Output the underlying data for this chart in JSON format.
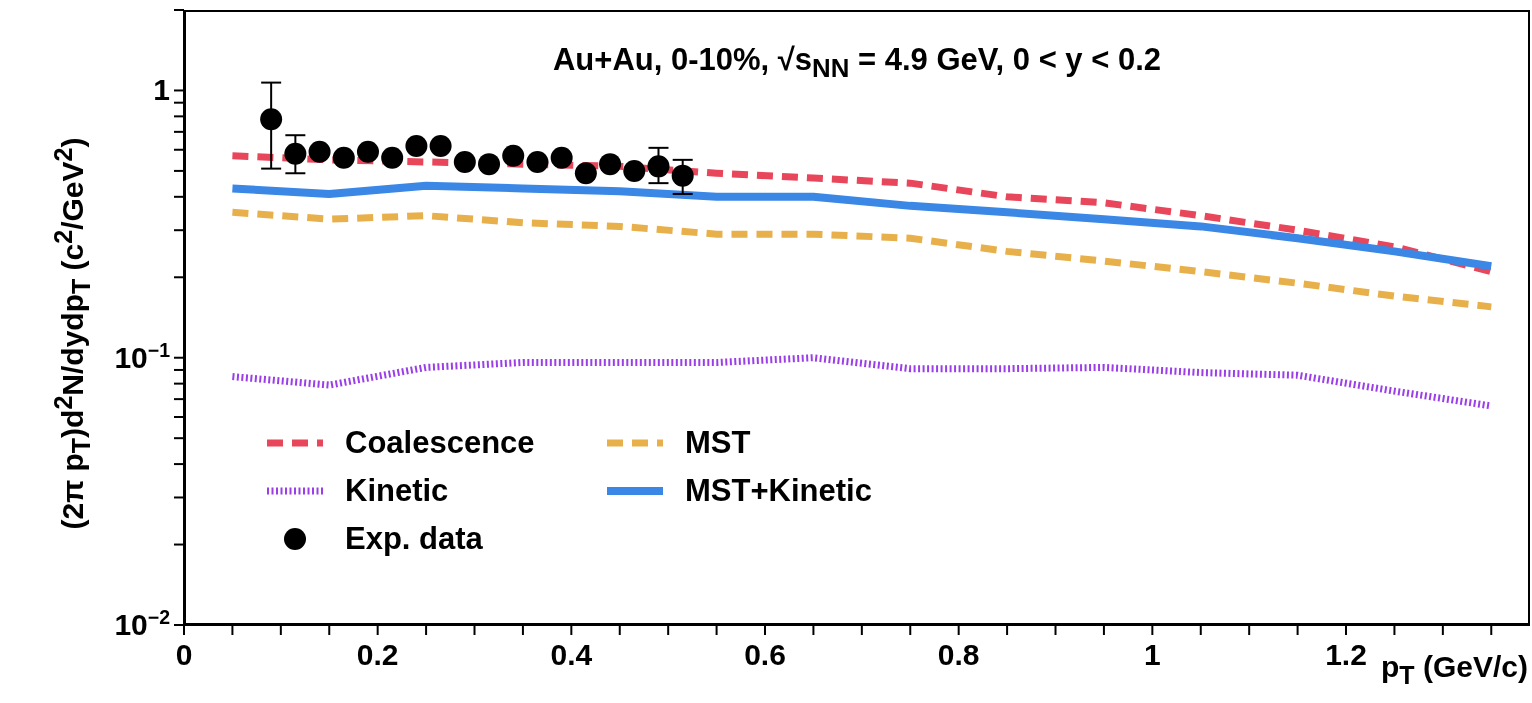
{
  "chart_data": {
    "type": "line",
    "title": "Au+Au, 0-10%, √s$_{NN}$ = 4.9 GeV, 0 < y < 0.2",
    "xlabel": "p$_{T}$ (GeV/c)",
    "ylabel": "(2π p$_{T}$)d$^{2}$N/dydp$_{T}$ (c$^{2}$/GeV$^{2}$)",
    "log": "y",
    "grid": false,
    "legend": "bottom left",
    "xlim": [
      0,
      1.39
    ],
    "xticks": [
      0,
      {
        "value": 0.05,
        "label": null
      },
      {
        "value": 0.1,
        "label": null
      },
      {
        "value": 0.15,
        "label": null
      },
      0.2,
      {
        "value": 0.25,
        "label": null
      },
      {
        "value": 0.3,
        "label": null
      },
      {
        "value": 0.35,
        "label": null
      },
      0.4,
      {
        "value": 0.45,
        "label": null
      },
      {
        "value": 0.5,
        "label": null
      },
      {
        "value": 0.55,
        "label": null
      },
      0.6,
      {
        "value": 0.65,
        "label": null
      },
      {
        "value": 0.7,
        "label": null
      },
      {
        "value": 0.75,
        "label": null
      },
      0.8,
      {
        "value": 0.85,
        "label": null
      },
      {
        "value": 0.9,
        "label": null
      },
      {
        "value": 0.95,
        "label": null
      },
      1,
      {
        "value": 1.05,
        "label": null
      },
      {
        "value": 1.1,
        "label": null
      },
      {
        "value": 1.15,
        "label": null
      },
      1.2,
      {
        "value": 1.25,
        "label": null
      },
      {
        "value": 1.3,
        "label": null
      },
      {
        "value": 1.35,
        "label": null
      }
    ],
    "ylim": [
      0.01,
      2
    ],
    "yticks": [
      {
        "value": 0.01,
        "label": "10$^{−2}$"
      },
      {
        "value": 0.02,
        "label": null
      },
      {
        "value": 0.03,
        "label": null
      },
      {
        "value": 0.04,
        "label": null
      },
      {
        "value": 0.05,
        "label": null
      },
      {
        "value": 0.06,
        "label": null
      },
      {
        "value": 0.07,
        "label": null
      },
      {
        "value": 0.08,
        "label": null
      },
      {
        "value": 0.09,
        "label": null
      },
      {
        "value": 0.1,
        "label": "10$^{−1}$"
      },
      {
        "value": 0.2,
        "label": null
      },
      {
        "value": 0.3,
        "label": null
      },
      {
        "value": 0.4,
        "label": null
      },
      {
        "value": 0.5,
        "label": null
      },
      {
        "value": 0.6,
        "label": null
      },
      {
        "value": 0.7,
        "label": null
      },
      {
        "value": 0.8,
        "label": null
      },
      {
        "value": 0.9,
        "label": null
      },
      1,
      {
        "value": 2,
        "label": null
      }
    ],
    "series": [
      {
        "name": "Coalescence",
        "color": "#e8465a",
        "line_style": "dashed",
        "x": [
          0.05,
          0.15,
          0.25,
          0.35,
          0.45,
          0.55,
          0.65,
          0.75,
          0.85,
          0.95,
          1.05,
          1.15,
          1.25,
          1.35
        ],
        "values": [
          0.57,
          0.55,
          0.54,
          0.53,
          0.52,
          0.49,
          0.47,
          0.45,
          0.4,
          0.38,
          0.34,
          0.3,
          0.26,
          0.21
        ]
      },
      {
        "name": "MST",
        "color": "#e8b04a",
        "line_style": "dashed",
        "x": [
          0.05,
          0.15,
          0.25,
          0.35,
          0.45,
          0.55,
          0.65,
          0.75,
          0.85,
          0.95,
          1.05,
          1.15,
          1.25,
          1.35
        ],
        "values": [
          0.35,
          0.33,
          0.34,
          0.32,
          0.31,
          0.29,
          0.29,
          0.28,
          0.25,
          0.23,
          0.21,
          0.19,
          0.17,
          0.155
        ]
      },
      {
        "name": "Kinetic",
        "color": "#9b3de8",
        "line_style": "dotted",
        "x": [
          0.05,
          0.15,
          0.25,
          0.35,
          0.45,
          0.55,
          0.65,
          0.75,
          0.85,
          0.95,
          1.05,
          1.15,
          1.25,
          1.35
        ],
        "values": [
          0.085,
          0.079,
          0.092,
          0.096,
          0.096,
          0.096,
          0.1,
          0.091,
          0.091,
          0.092,
          0.088,
          0.086,
          0.075,
          0.066
        ]
      },
      {
        "name": "MST+Kinetic",
        "color": "#3a87e6",
        "line_style": "solid",
        "x": [
          0.05,
          0.15,
          0.25,
          0.35,
          0.45,
          0.55,
          0.65,
          0.75,
          0.85,
          0.95,
          1.05,
          1.15,
          1.25,
          1.35
        ],
        "values": [
          0.43,
          0.41,
          0.44,
          0.43,
          0.42,
          0.4,
          0.4,
          0.37,
          0.35,
          0.33,
          0.31,
          0.28,
          0.25,
          0.22
        ]
      },
      {
        "name": "Exp. data",
        "type": "scatter",
        "color": "#000000",
        "marker": "circle",
        "x": [
          0.09,
          0.115,
          0.14,
          0.165,
          0.19,
          0.215,
          0.24,
          0.265,
          0.29,
          0.315,
          0.34,
          0.365,
          0.39,
          0.415,
          0.44,
          0.465,
          0.49,
          0.515
        ],
        "values": [
          0.78,
          0.58,
          0.59,
          0.56,
          0.59,
          0.56,
          0.62,
          0.62,
          0.54,
          0.53,
          0.57,
          0.54,
          0.56,
          0.49,
          0.53,
          0.5,
          0.52,
          0.48
        ],
        "errors": [
          [
            0.51,
            1.07
          ],
          [
            0.49,
            0.68
          ],
          null,
          null,
          null,
          null,
          null,
          null,
          null,
          null,
          null,
          null,
          null,
          null,
          null,
          null,
          [
            0.45,
            0.61
          ],
          [
            0.41,
            0.55
          ]
        ]
      }
    ]
  }
}
